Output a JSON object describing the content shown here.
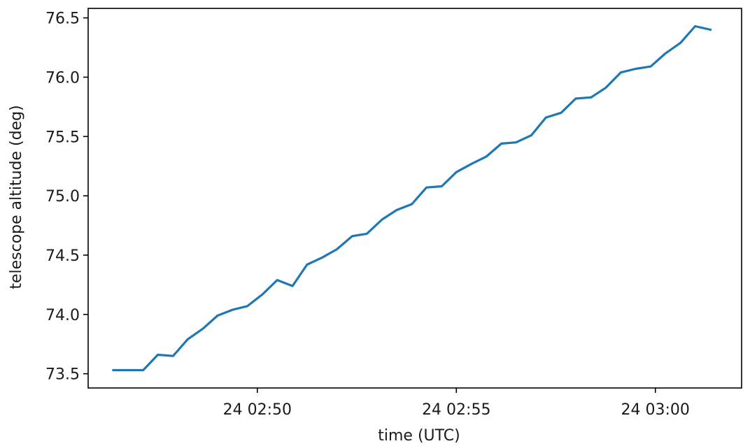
{
  "chart_data": {
    "type": "line",
    "title": "",
    "xlabel": "time (UTC)",
    "ylabel": "telescope altitude (deg)",
    "xlim": [
      "24 02:45:45",
      "24 03:02:10"
    ],
    "ylim": [
      73.38,
      76.58
    ],
    "x_ticks": [
      "24 02:50",
      "24 02:55",
      "24 03:00"
    ],
    "y_ticks": [
      "73.5",
      "74.0",
      "74.5",
      "75.0",
      "75.5",
      "76.0",
      "76.5"
    ],
    "grid": false,
    "legend": "none",
    "color": "#1f77b4",
    "series": [
      {
        "x": [
          "24 02:46:23",
          "24 02:46:45",
          "24 02:47:08",
          "24 02:47:30",
          "24 02:47:53",
          "24 02:48:15",
          "24 02:48:38",
          "24 02:49:00",
          "24 02:49:23",
          "24 02:49:45",
          "24 02:50:08",
          "24 02:50:30",
          "24 02:50:53",
          "24 02:51:15",
          "24 02:51:38",
          "24 02:52:00",
          "24 02:52:23",
          "24 02:52:45",
          "24 02:53:08",
          "24 02:53:30",
          "24 02:53:53",
          "24 02:54:15",
          "24 02:54:38",
          "24 02:55:00",
          "24 02:55:23",
          "24 02:55:45",
          "24 02:56:08",
          "24 02:56:30",
          "24 02:56:53",
          "24 02:57:15",
          "24 02:57:38",
          "24 02:58:00",
          "24 02:58:23",
          "24 02:58:45",
          "24 02:59:08",
          "24 02:59:30",
          "24 02:59:53",
          "24 03:00:15",
          "24 03:00:38",
          "24 03:01:00",
          "24 03:01:23"
        ],
        "values": [
          73.53,
          73.53,
          73.53,
          73.66,
          73.65,
          73.79,
          73.88,
          73.99,
          74.04,
          74.07,
          74.17,
          74.29,
          74.24,
          74.42,
          74.48,
          74.55,
          74.66,
          74.68,
          74.8,
          74.88,
          74.93,
          75.07,
          75.08,
          75.2,
          75.27,
          75.33,
          75.44,
          75.45,
          75.51,
          75.66,
          75.7,
          75.82,
          75.83,
          75.91,
          76.04,
          76.07,
          76.09,
          76.2,
          76.29,
          76.43,
          76.4
        ]
      }
    ]
  }
}
